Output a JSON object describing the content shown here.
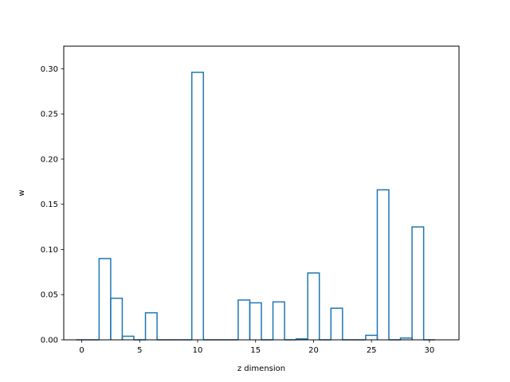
{
  "chart_data": {
    "type": "bar",
    "style": "step-histogram",
    "xlabel": "z dimension",
    "ylabel": "w",
    "xlim": [
      -1.55,
      32.55
    ],
    "ylim": [
      0,
      0.325
    ],
    "grid": false,
    "bar_width": 1,
    "color": "#1f77b4",
    "x_ticks": [
      0,
      5,
      10,
      15,
      20,
      25,
      30
    ],
    "y_ticks": [
      0.0,
      0.05,
      0.1,
      0.15,
      0.2,
      0.25,
      0.3
    ],
    "x_tick_labels": [
      "0",
      "5",
      "10",
      "15",
      "20",
      "25",
      "30"
    ],
    "y_tick_labels": [
      "0.00",
      "0.05",
      "0.10",
      "0.15",
      "0.20",
      "0.25",
      "0.30"
    ],
    "x": [
      0,
      1,
      2,
      3,
      4,
      5,
      6,
      7,
      8,
      9,
      10,
      11,
      12,
      13,
      14,
      15,
      16,
      17,
      18,
      19,
      20,
      21,
      22,
      23,
      24,
      25,
      26,
      27,
      28,
      29,
      30
    ],
    "values": [
      0.0,
      0.0,
      0.09,
      0.046,
      0.004,
      0.0,
      0.03,
      0.0,
      0.0,
      0.0,
      0.296,
      0.0,
      0.0,
      0.0,
      0.044,
      0.041,
      0.0,
      0.042,
      0.0,
      0.001,
      0.074,
      0.0,
      0.035,
      0.0,
      0.0,
      0.005,
      0.166,
      0.0,
      0.002,
      0.125,
      0.0
    ]
  }
}
